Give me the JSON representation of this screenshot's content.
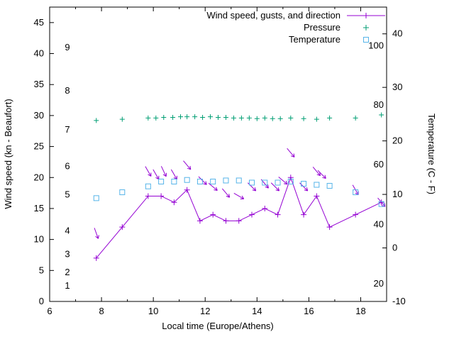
{
  "chart_data": {
    "type": "line",
    "title": "",
    "xlabel": "Local time (Europe/Athens)",
    "ylabel_left": "Wind speed (kn - Beaufort)",
    "ylabel_right": "Temperature (C - F)",
    "xlim": [
      6,
      19
    ],
    "ylim_left": [
      0,
      47.5
    ],
    "ylim_right": [
      -10,
      45
    ],
    "x_major_ticks": [
      6,
      8,
      10,
      12,
      14,
      16,
      18
    ],
    "x_minor_ticks": [
      7,
      9,
      11,
      13,
      15,
      17
    ],
    "y_left_ticks": [
      0,
      5,
      10,
      15,
      20,
      25,
      30,
      35,
      40,
      45
    ],
    "y_right_ticks": [
      -10,
      0,
      10,
      20,
      30,
      40
    ],
    "beaufort_scale_labels": [
      {
        "label": "1",
        "kn": 2.5
      },
      {
        "label": "2",
        "kn": 4.7
      },
      {
        "label": "3",
        "kn": 7.6
      },
      {
        "label": "4",
        "kn": 11.4
      },
      {
        "label": "5",
        "kn": 17.2
      },
      {
        "label": "6",
        "kn": 21.8
      },
      {
        "label": "7",
        "kn": 27.7
      },
      {
        "label": "8",
        "kn": 34.0
      },
      {
        "label": "9",
        "kn": 41.0
      }
    ],
    "fahrenheit_scale_labels": [
      {
        "label": "20",
        "c": -6.7
      },
      {
        "label": "40",
        "c": 4.4
      },
      {
        "label": "60",
        "c": 15.6
      },
      {
        "label": "80",
        "c": 26.7
      },
      {
        "label": "100",
        "c": 37.8
      }
    ],
    "legend": [
      {
        "label": "Wind speed, gusts, and direction",
        "marker": "line-plus",
        "color": "#9400d3"
      },
      {
        "label": "Pressure",
        "marker": "plus",
        "color": "#009e73"
      },
      {
        "label": "Temperature",
        "marker": "square",
        "color": "#56b4e9"
      }
    ],
    "series": [
      {
        "name": "wind-speed",
        "axis": "left",
        "color": "#9400d3",
        "style": "line+plus",
        "x": [
          7.8,
          8.8,
          9.8,
          10.3,
          10.8,
          11.3,
          11.8,
          12.3,
          12.8,
          13.3,
          13.8,
          14.3,
          14.8,
          15.3,
          15.8,
          16.3,
          16.8,
          17.8,
          18.8
        ],
        "y": [
          7,
          12,
          17,
          17,
          16,
          18,
          13,
          14,
          13,
          13,
          14,
          15,
          14,
          20,
          14,
          17,
          12,
          14,
          16
        ]
      },
      {
        "name": "wind-gusts-direction",
        "axis": "left",
        "color": "#9400d3",
        "style": "direction-arrows",
        "points": [
          {
            "x": 7.8,
            "kn": 11.0,
            "dir_deg": 160
          },
          {
            "x": 9.8,
            "kn": 21.0,
            "dir_deg": 150
          },
          {
            "x": 10.1,
            "kn": 20.5,
            "dir_deg": 150
          },
          {
            "x": 10.4,
            "kn": 21.0,
            "dir_deg": 155
          },
          {
            "x": 10.8,
            "kn": 20.5,
            "dir_deg": 150
          },
          {
            "x": 11.3,
            "kn": 22.0,
            "dir_deg": 140
          },
          {
            "x": 11.9,
            "kn": 19.5,
            "dir_deg": 135
          },
          {
            "x": 12.3,
            "kn": 18.5,
            "dir_deg": 130
          },
          {
            "x": 12.8,
            "kn": 17.5,
            "dir_deg": 140
          },
          {
            "x": 13.3,
            "kn": 17.0,
            "dir_deg": 120
          },
          {
            "x": 13.8,
            "kn": 18.5,
            "dir_deg": 135
          },
          {
            "x": 14.3,
            "kn": 19.0,
            "dir_deg": 140
          },
          {
            "x": 14.7,
            "kn": 18.5,
            "dir_deg": 135
          },
          {
            "x": 15.0,
            "kn": 19.5,
            "dir_deg": 130
          },
          {
            "x": 15.3,
            "kn": 24.0,
            "dir_deg": 140
          },
          {
            "x": 15.8,
            "kn": 18.5,
            "dir_deg": 135
          },
          {
            "x": 16.3,
            "kn": 21.0,
            "dir_deg": 140
          },
          {
            "x": 16.5,
            "kn": 20.5,
            "dir_deg": 135
          },
          {
            "x": 17.8,
            "kn": 18.0,
            "dir_deg": 150
          },
          {
            "x": 18.8,
            "kn": 16.0,
            "dir_deg": 140
          }
        ]
      },
      {
        "name": "pressure",
        "axis": "left",
        "color": "#009e73",
        "style": "plus",
        "x": [
          7.8,
          8.8,
          9.8,
          10.1,
          10.4,
          10.75,
          11.05,
          11.3,
          11.6,
          11.9,
          12.2,
          12.5,
          12.8,
          13.1,
          13.4,
          13.7,
          14.0,
          14.3,
          14.6,
          14.9,
          15.3,
          15.8,
          16.3,
          16.8,
          17.8,
          18.8
        ],
        "y": [
          29.2,
          29.4,
          29.6,
          29.6,
          29.7,
          29.7,
          29.8,
          29.8,
          29.8,
          29.7,
          29.8,
          29.7,
          29.7,
          29.6,
          29.6,
          29.6,
          29.5,
          29.6,
          29.5,
          29.5,
          29.6,
          29.5,
          29.4,
          29.6,
          29.6,
          30.1
        ]
      },
      {
        "name": "temperature",
        "axis": "right",
        "color": "#56b4e9",
        "style": "open-square",
        "x": [
          7.8,
          8.8,
          9.8,
          10.3,
          10.8,
          11.3,
          11.8,
          12.3,
          12.8,
          13.3,
          13.8,
          14.3,
          14.8,
          15.3,
          15.8,
          16.3,
          16.8,
          17.8,
          18.8
        ],
        "y": [
          9.3,
          10.4,
          11.5,
          12.4,
          12.4,
          12.7,
          12.4,
          12.4,
          12.6,
          12.6,
          12.2,
          12.2,
          12.2,
          12.4,
          12.0,
          11.8,
          11.6,
          10.4,
          8.2
        ]
      }
    ]
  }
}
